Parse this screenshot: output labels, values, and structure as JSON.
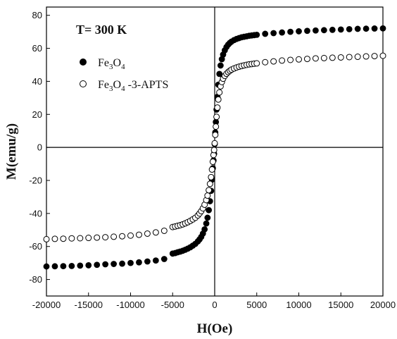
{
  "chart_data": {
    "type": "scatter",
    "title": "",
    "annotation": "T= 300 K",
    "xlabel": "H(Oe)",
    "ylabel": "M(emu/g)",
    "xlim": [
      -20000,
      20000
    ],
    "ylim": [
      -90,
      85
    ],
    "xticks": [
      -20000,
      -15000,
      -10000,
      -5000,
      0,
      5000,
      10000,
      15000,
      20000
    ],
    "yticks": [
      -80,
      -60,
      -40,
      -20,
      0,
      20,
      40,
      60,
      80
    ],
    "grid": false,
    "legend_position": "top-left",
    "series": [
      {
        "legend_main": "Fe",
        "legend_sub1": "3",
        "legend_mid": "O",
        "legend_sub2": "4",
        "legend_tail": "",
        "marker": "filled-circle",
        "color": "#000000",
        "Ms": 72.5,
        "a": 320,
        "x": [
          -20000,
          -19000,
          -18000,
          -17000,
          -16000,
          -15000,
          -14000,
          -13000,
          -12000,
          -11000,
          -10000,
          -9000,
          -8000,
          -7000,
          -6000,
          -5000,
          -4700,
          -4400,
          -4100,
          -3800,
          -3500,
          -3200,
          -2900,
          -2600,
          -2300,
          -2000,
          -1800,
          -1600,
          -1400,
          -1200,
          -1000,
          -850,
          -700,
          -560,
          -430,
          -320,
          -220,
          -140,
          -70,
          0,
          70,
          140,
          220,
          320,
          430,
          560,
          700,
          850,
          1000,
          1200,
          1400,
          1600,
          1800,
          2000,
          2300,
          2600,
          2900,
          3200,
          3500,
          3800,
          4100,
          4400,
          4700,
          5000,
          6000,
          7000,
          8000,
          9000,
          10000,
          11000,
          12000,
          13000,
          14000,
          15000,
          16000,
          17000,
          18000,
          19000,
          20000
        ],
        "y": [
          -72.1,
          -72.0,
          -71.9,
          -71.8,
          -71.6,
          -71.4,
          -71.1,
          -70.8,
          -70.6,
          -70.4,
          -70.0,
          -69.6,
          -69.1,
          -68.5,
          -67.6,
          -64.3,
          -64.0,
          -63.5,
          -63.1,
          -62.6,
          -62.0,
          -61.3,
          -60.5,
          -59.5,
          -58.4,
          -56.9,
          -55.7,
          -54.2,
          -52.2,
          -49.6,
          -46.1,
          -42.6,
          -38.0,
          -32.6,
          -26.3,
          -19.5,
          -12.6,
          -7.9,
          -3.9,
          2.0,
          9.1,
          15.4,
          22.9,
          30.6,
          38.0,
          44.5,
          49.6,
          53.4,
          56.2,
          58.8,
          60.8,
          62.2,
          63.3,
          64.1,
          65.0,
          65.7,
          66.2,
          66.7,
          67.0,
          67.3,
          67.6,
          67.8,
          68.0,
          68.2,
          68.8,
          69.2,
          69.6,
          70.0,
          70.3,
          70.6,
          70.8,
          71.0,
          71.2,
          71.4,
          71.6,
          71.8,
          71.9,
          72.0,
          72.1
        ]
      },
      {
        "legend_main": "Fe",
        "legend_sub1": "3",
        "legend_mid": "O",
        "legend_sub2": "4",
        "legend_tail": " -3-APTS",
        "marker": "open-circle",
        "color": "#000000",
        "x": [
          -20000,
          -19000,
          -18000,
          -17000,
          -16000,
          -15000,
          -14000,
          -13000,
          -12000,
          -11000,
          -10000,
          -9000,
          -8000,
          -7000,
          -6000,
          -5000,
          -4700,
          -4400,
          -4100,
          -3800,
          -3500,
          -3200,
          -2900,
          -2600,
          -2300,
          -2000,
          -1800,
          -1600,
          -1400,
          -1200,
          -1000,
          -850,
          -700,
          -560,
          -430,
          -320,
          -220,
          -140,
          -70,
          0,
          70,
          140,
          220,
          320,
          430,
          560,
          700,
          850,
          1000,
          1200,
          1400,
          1600,
          1800,
          2000,
          2300,
          2600,
          2900,
          3200,
          3500,
          3800,
          4100,
          4400,
          4700,
          5000,
          6000,
          7000,
          8000,
          9000,
          10000,
          11000,
          12000,
          13000,
          14000,
          15000,
          16000,
          17000,
          18000,
          19000,
          20000
        ],
        "y": [
          -55.6,
          -55.4,
          -55.3,
          -55.1,
          -55.0,
          -54.8,
          -54.6,
          -54.4,
          -54.1,
          -53.8,
          -53.4,
          -52.9,
          -52.2,
          -51.5,
          -50.5,
          -48.2,
          -47.9,
          -47.5,
          -47.1,
          -46.6,
          -46.0,
          -45.3,
          -44.5,
          -43.6,
          -42.6,
          -41.2,
          -40.0,
          -38.6,
          -36.9,
          -34.7,
          -31.9,
          -29.2,
          -25.9,
          -22.1,
          -18.0,
          -13.4,
          -8.7,
          -4.6,
          -1.6,
          2.5,
          7.6,
          12.6,
          18.5,
          24.1,
          29.0,
          33.3,
          37.0,
          39.6,
          41.6,
          43.3,
          44.6,
          45.6,
          46.4,
          47.1,
          47.8,
          48.4,
          48.9,
          49.3,
          49.7,
          50.0,
          50.3,
          50.5,
          50.7,
          50.9,
          51.6,
          52.1,
          52.6,
          53.0,
          53.3,
          53.6,
          53.9,
          54.1,
          54.3,
          54.5,
          54.7,
          54.9,
          55.1,
          55.3,
          55.5
        ]
      }
    ]
  }
}
